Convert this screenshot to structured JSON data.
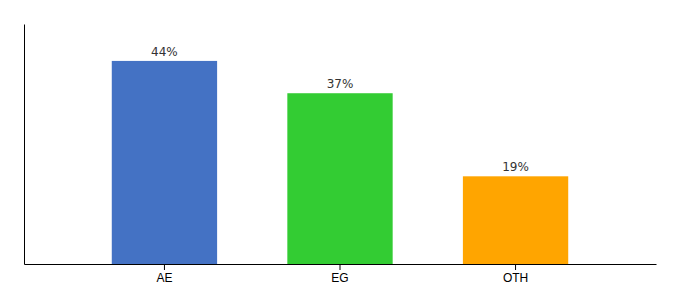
{
  "chart_data": {
    "type": "bar",
    "categories": [
      "AE",
      "EG",
      "OTH"
    ],
    "values": [
      44,
      37,
      19
    ],
    "value_labels": [
      "44%",
      "37%",
      "19%"
    ],
    "colors": [
      "#4472C4",
      "#33CC33",
      "#FFA500"
    ],
    "ylim": [
      0,
      52
    ],
    "data_labels": true,
    "tick_labels": "x",
    "grid": false
  }
}
